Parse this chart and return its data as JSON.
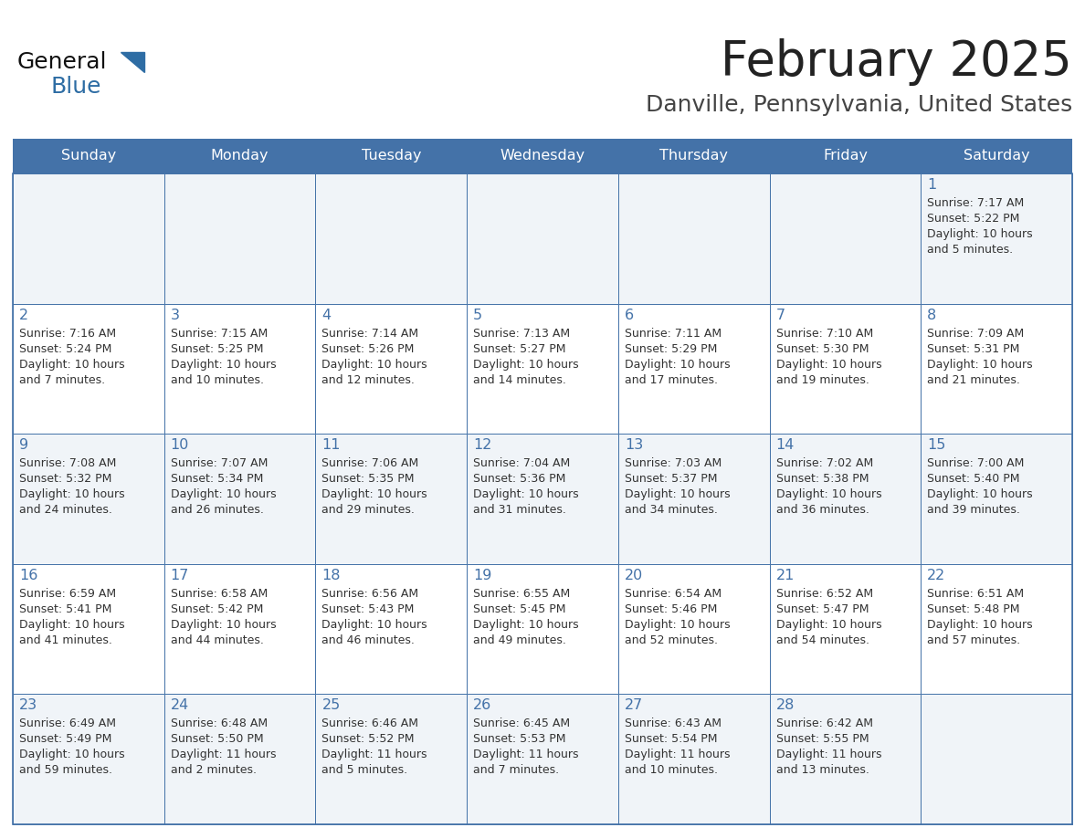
{
  "title": "February 2025",
  "subtitle": "Danville, Pennsylvania, United States",
  "days_of_week": [
    "Sunday",
    "Monday",
    "Tuesday",
    "Wednesday",
    "Thursday",
    "Friday",
    "Saturday"
  ],
  "header_bg": "#4472a8",
  "header_text": "#FFFFFF",
  "cell_bg_white": "#FFFFFF",
  "cell_bg_gray": "#f0f4f8",
  "border_color": "#4472a8",
  "day_num_color": "#4472a8",
  "cell_text_color": "#333333",
  "title_color": "#222222",
  "subtitle_color": "#444444",
  "logo_general_color": "#111111",
  "logo_blue_color": "#2E6DA4",
  "weeks": [
    [
      {
        "day": null,
        "info": null
      },
      {
        "day": null,
        "info": null
      },
      {
        "day": null,
        "info": null
      },
      {
        "day": null,
        "info": null
      },
      {
        "day": null,
        "info": null
      },
      {
        "day": null,
        "info": null
      },
      {
        "day": 1,
        "info": "Sunrise: 7:17 AM\nSunset: 5:22 PM\nDaylight: 10 hours\nand 5 minutes."
      }
    ],
    [
      {
        "day": 2,
        "info": "Sunrise: 7:16 AM\nSunset: 5:24 PM\nDaylight: 10 hours\nand 7 minutes."
      },
      {
        "day": 3,
        "info": "Sunrise: 7:15 AM\nSunset: 5:25 PM\nDaylight: 10 hours\nand 10 minutes."
      },
      {
        "day": 4,
        "info": "Sunrise: 7:14 AM\nSunset: 5:26 PM\nDaylight: 10 hours\nand 12 minutes."
      },
      {
        "day": 5,
        "info": "Sunrise: 7:13 AM\nSunset: 5:27 PM\nDaylight: 10 hours\nand 14 minutes."
      },
      {
        "day": 6,
        "info": "Sunrise: 7:11 AM\nSunset: 5:29 PM\nDaylight: 10 hours\nand 17 minutes."
      },
      {
        "day": 7,
        "info": "Sunrise: 7:10 AM\nSunset: 5:30 PM\nDaylight: 10 hours\nand 19 minutes."
      },
      {
        "day": 8,
        "info": "Sunrise: 7:09 AM\nSunset: 5:31 PM\nDaylight: 10 hours\nand 21 minutes."
      }
    ],
    [
      {
        "day": 9,
        "info": "Sunrise: 7:08 AM\nSunset: 5:32 PM\nDaylight: 10 hours\nand 24 minutes."
      },
      {
        "day": 10,
        "info": "Sunrise: 7:07 AM\nSunset: 5:34 PM\nDaylight: 10 hours\nand 26 minutes."
      },
      {
        "day": 11,
        "info": "Sunrise: 7:06 AM\nSunset: 5:35 PM\nDaylight: 10 hours\nand 29 minutes."
      },
      {
        "day": 12,
        "info": "Sunrise: 7:04 AM\nSunset: 5:36 PM\nDaylight: 10 hours\nand 31 minutes."
      },
      {
        "day": 13,
        "info": "Sunrise: 7:03 AM\nSunset: 5:37 PM\nDaylight: 10 hours\nand 34 minutes."
      },
      {
        "day": 14,
        "info": "Sunrise: 7:02 AM\nSunset: 5:38 PM\nDaylight: 10 hours\nand 36 minutes."
      },
      {
        "day": 15,
        "info": "Sunrise: 7:00 AM\nSunset: 5:40 PM\nDaylight: 10 hours\nand 39 minutes."
      }
    ],
    [
      {
        "day": 16,
        "info": "Sunrise: 6:59 AM\nSunset: 5:41 PM\nDaylight: 10 hours\nand 41 minutes."
      },
      {
        "day": 17,
        "info": "Sunrise: 6:58 AM\nSunset: 5:42 PM\nDaylight: 10 hours\nand 44 minutes."
      },
      {
        "day": 18,
        "info": "Sunrise: 6:56 AM\nSunset: 5:43 PM\nDaylight: 10 hours\nand 46 minutes."
      },
      {
        "day": 19,
        "info": "Sunrise: 6:55 AM\nSunset: 5:45 PM\nDaylight: 10 hours\nand 49 minutes."
      },
      {
        "day": 20,
        "info": "Sunrise: 6:54 AM\nSunset: 5:46 PM\nDaylight: 10 hours\nand 52 minutes."
      },
      {
        "day": 21,
        "info": "Sunrise: 6:52 AM\nSunset: 5:47 PM\nDaylight: 10 hours\nand 54 minutes."
      },
      {
        "day": 22,
        "info": "Sunrise: 6:51 AM\nSunset: 5:48 PM\nDaylight: 10 hours\nand 57 minutes."
      }
    ],
    [
      {
        "day": 23,
        "info": "Sunrise: 6:49 AM\nSunset: 5:49 PM\nDaylight: 10 hours\nand 59 minutes."
      },
      {
        "day": 24,
        "info": "Sunrise: 6:48 AM\nSunset: 5:50 PM\nDaylight: 11 hours\nand 2 minutes."
      },
      {
        "day": 25,
        "info": "Sunrise: 6:46 AM\nSunset: 5:52 PM\nDaylight: 11 hours\nand 5 minutes."
      },
      {
        "day": 26,
        "info": "Sunrise: 6:45 AM\nSunset: 5:53 PM\nDaylight: 11 hours\nand 7 minutes."
      },
      {
        "day": 27,
        "info": "Sunrise: 6:43 AM\nSunset: 5:54 PM\nDaylight: 11 hours\nand 10 minutes."
      },
      {
        "day": 28,
        "info": "Sunrise: 6:42 AM\nSunset: 5:55 PM\nDaylight: 11 hours\nand 13 minutes."
      },
      {
        "day": null,
        "info": null
      }
    ]
  ]
}
